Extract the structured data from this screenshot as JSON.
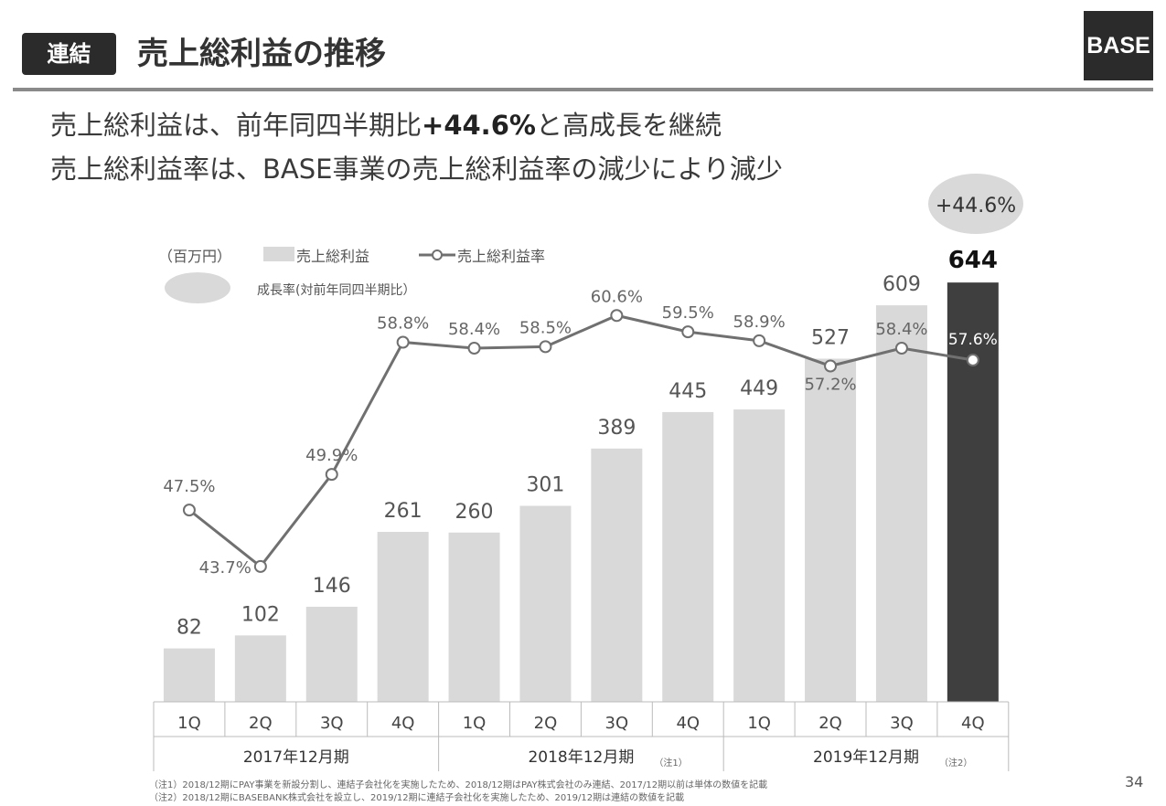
{
  "header": {
    "badge": "連結",
    "title": "売上総利益の推移",
    "logo": "BASE"
  },
  "subtitle": {
    "line1_a": "売上総利益は、前年同四半期比",
    "line1_bold": "+44.6%",
    "line1_b": "と高成長を継続",
    "line2": "売上総利益率は、BASE事業の売上総利益率の減少により減少"
  },
  "legend": {
    "unit": "（百万円）",
    "bar": "売上総利益",
    "line": "売上総利益率",
    "growth": "成長率(対前年同四半期比）"
  },
  "chart_data": {
    "type": "bar+line",
    "unit": "百万円",
    "categories": [
      "1Q",
      "2Q",
      "3Q",
      "4Q",
      "1Q",
      "2Q",
      "3Q",
      "4Q",
      "1Q",
      "2Q",
      "3Q",
      "4Q"
    ],
    "groups": [
      {
        "label": "2017年12月期",
        "note": ""
      },
      {
        "label": "2018年12月期",
        "note": "（注1）"
      },
      {
        "label": "2019年12月期",
        "note": "（注2）"
      }
    ],
    "series": [
      {
        "name": "売上総利益",
        "type": "bar",
        "values": [
          82,
          102,
          146,
          261,
          260,
          301,
          389,
          445,
          449,
          527,
          609,
          644
        ]
      },
      {
        "name": "売上総利益率",
        "type": "line",
        "values": [
          47.5,
          43.7,
          49.9,
          58.8,
          58.4,
          58.5,
          60.6,
          59.5,
          58.9,
          57.2,
          58.4,
          57.6
        ]
      }
    ],
    "line_labels": [
      "47.5%",
      "43.7%",
      "49.9%",
      "58.8%",
      "58.4%",
      "58.5%",
      "60.6%",
      "59.5%",
      "58.9%",
      "57.2%",
      "58.4%",
      "57.6%"
    ],
    "highlight_index": 11,
    "growth_callout": "+44.6%",
    "bar_ylim": [
      0,
      720
    ],
    "line_ylim": [
      36,
      64
    ]
  },
  "colors": {
    "bar": "#d9d9d9",
    "bar_highlight": "#3f3f3f",
    "line": "#707070",
    "dark": "#2b2b2b",
    "ellipse": "#d9d9d9"
  },
  "footnotes": {
    "note1": "（注1）2018/12期にPAY事業を新設分割し、連結子会社化を実施したため、2018/12期はPAY株式会社のみ連結、2017/12期以前は単体の数値を記載",
    "note2": "（注2）2018/12期にBASEBANK株式会社を設立し、2019/12期に連結子会社化を実施したため、2019/12期は連結の数値を記載"
  },
  "page_number": "34"
}
